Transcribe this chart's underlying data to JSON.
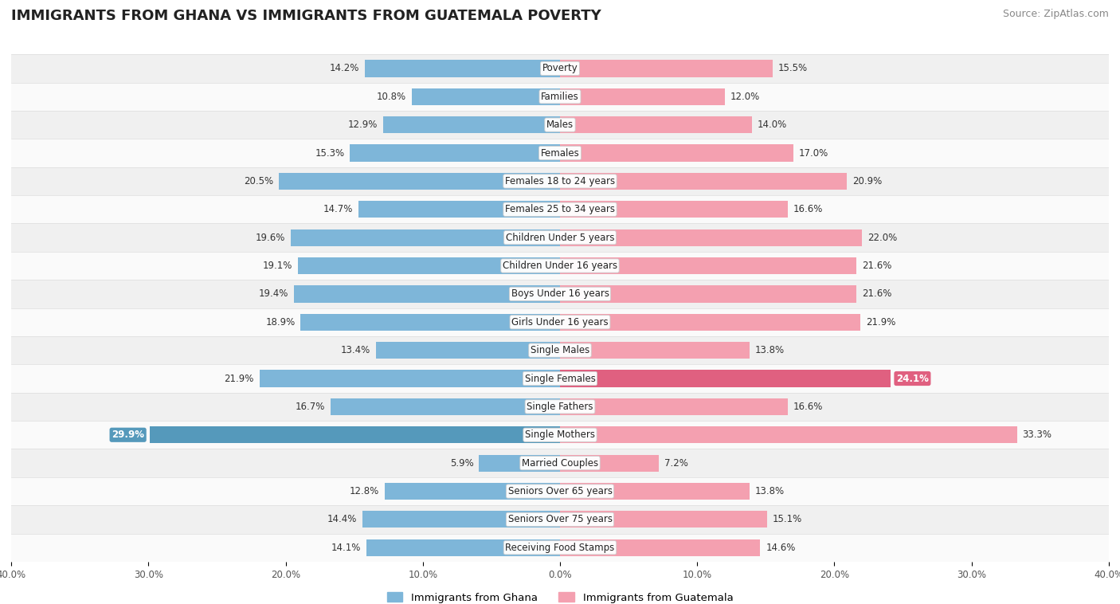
{
  "title": "IMMIGRANTS FROM GHANA VS IMMIGRANTS FROM GUATEMALA POVERTY",
  "source": "Source: ZipAtlas.com",
  "categories": [
    "Poverty",
    "Families",
    "Males",
    "Females",
    "Females 18 to 24 years",
    "Females 25 to 34 years",
    "Children Under 5 years",
    "Children Under 16 years",
    "Boys Under 16 years",
    "Girls Under 16 years",
    "Single Males",
    "Single Females",
    "Single Fathers",
    "Single Mothers",
    "Married Couples",
    "Seniors Over 65 years",
    "Seniors Over 75 years",
    "Receiving Food Stamps"
  ],
  "ghana_values": [
    14.2,
    10.8,
    12.9,
    15.3,
    20.5,
    14.7,
    19.6,
    19.1,
    19.4,
    18.9,
    13.4,
    21.9,
    16.7,
    29.9,
    5.9,
    12.8,
    14.4,
    14.1
  ],
  "guatemala_values": [
    15.5,
    12.0,
    14.0,
    17.0,
    20.9,
    16.6,
    22.0,
    21.6,
    21.6,
    21.9,
    13.8,
    24.1,
    16.6,
    33.3,
    7.2,
    13.8,
    15.1,
    14.6
  ],
  "ghana_color": "#7EB6D9",
  "guatemala_color": "#F4A0B0",
  "ghana_label": "Immigrants from Ghana",
  "guatemala_label": "Immigrants from Guatemala",
  "axis_max": 40.0,
  "bar_height": 0.6,
  "row_bg_odd": "#F0F0F0",
  "row_bg_even": "#FAFAFA",
  "label_fontsize": 8.5,
  "value_fontsize": 8.5,
  "title_fontsize": 13,
  "source_fontsize": 9,
  "highlight_color_ghana": "#5599BB",
  "highlight_color_guatemala": "#E06080",
  "highlight_text_color": "white"
}
